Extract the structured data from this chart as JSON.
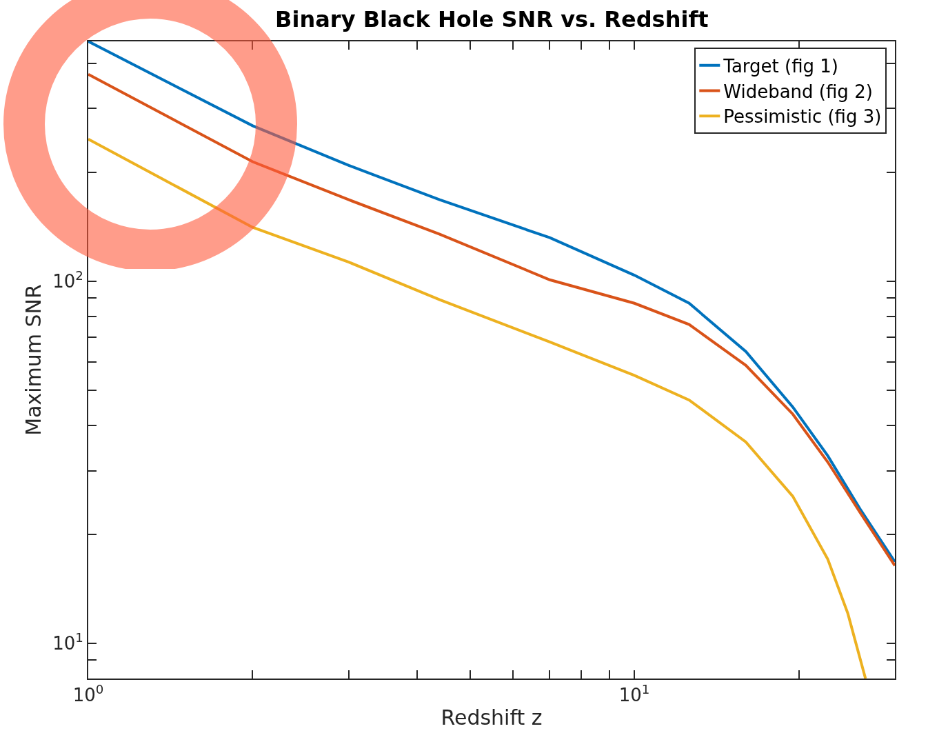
{
  "chart_data": {
    "type": "line",
    "title": "Binary Black Hole SNR vs. Redshift",
    "xlabel": "Redshift z",
    "ylabel": "Maximum SNR",
    "log": "xy",
    "grid": false,
    "legend": "top right",
    "marker": "none",
    "line_style": "solid",
    "x": [
      1,
      2,
      3,
      4.4,
      7,
      10,
      12.6,
      16,
      19.5,
      22.6,
      26,
      30
    ],
    "xlim": [
      1,
      30
    ],
    "ylim": [
      8,
      460
    ],
    "xticks": [
      {
        "value": 1,
        "label": "10$^{0}$"
      },
      {
        "value": 2,
        "label": null
      },
      {
        "value": 3,
        "label": null
      },
      {
        "value": 4,
        "label": null
      },
      {
        "value": 5,
        "label": null
      },
      {
        "value": 6,
        "label": null
      },
      {
        "value": 7,
        "label": null
      },
      {
        "value": 8,
        "label": null
      },
      {
        "value": 9,
        "label": null
      },
      {
        "value": 10,
        "label": "10$^{1}$"
      },
      {
        "value": 20,
        "label": null
      },
      {
        "value": 30,
        "label": null
      }
    ],
    "yticks": [
      {
        "value": 9,
        "label": null
      },
      {
        "value": 10,
        "label": "10$^{1}$"
      },
      {
        "value": 20,
        "label": null
      },
      {
        "value": 30,
        "label": null
      },
      {
        "value": 40,
        "label": null
      },
      {
        "value": 50,
        "label": null
      },
      {
        "value": 60,
        "label": null
      },
      {
        "value": 70,
        "label": null
      },
      {
        "value": 80,
        "label": null
      },
      {
        "value": 90,
        "label": null
      },
      {
        "value": 100,
        "label": "10$^{2}$"
      },
      {
        "value": 200,
        "label": null
      },
      {
        "value": 300,
        "label": null
      },
      {
        "value": 400,
        "label": null
      }
    ],
    "series": [
      {
        "name": "Target (fig 1)",
        "color": "#0072bd",
        "values": [
          460,
          269,
          209,
          168,
          132,
          104,
          87,
          64,
          45,
          33,
          23.3,
          16.8
        ]
      },
      {
        "name": "Wideband (fig 2)",
        "color": "#d95319",
        "values": [
          373,
          214,
          168,
          135,
          101,
          87,
          76,
          58.6,
          43,
          31.7,
          22.8,
          16.4
        ]
      },
      {
        "name": "Pessimistic (fig 3)",
        "color": "#edb120",
        "x": [
          1,
          2,
          3,
          4.4,
          7,
          10,
          12.6,
          16,
          19.5,
          22.6,
          24.6,
          26.5
        ],
        "values": [
          247,
          141,
          113,
          89,
          68,
          55,
          47,
          36,
          25.5,
          17.1,
          12.1,
          8
        ]
      }
    ]
  }
}
